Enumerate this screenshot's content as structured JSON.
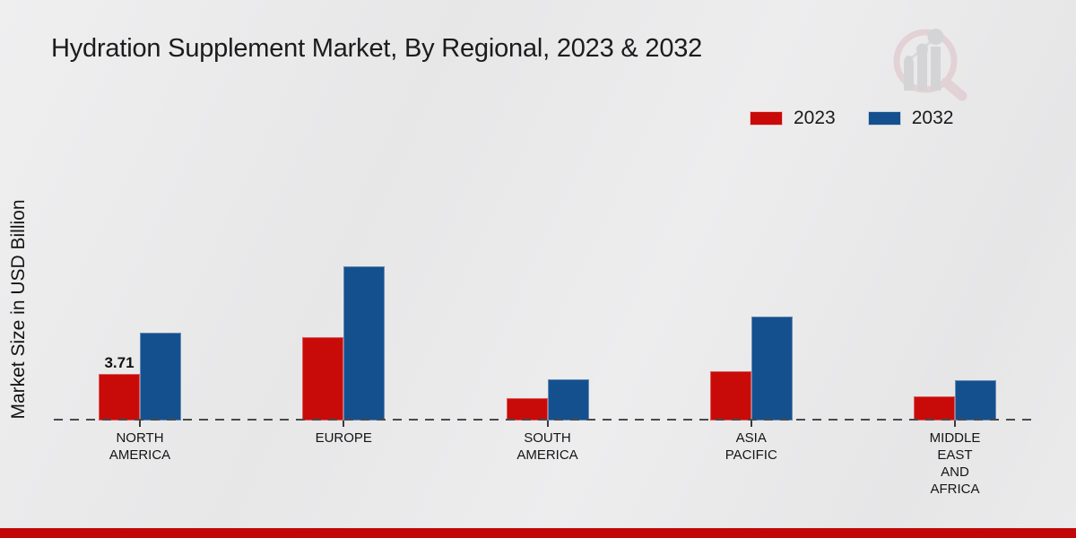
{
  "header": {
    "title": "Hydration Supplement Market, By Regional, 2023 & 2032"
  },
  "watermark": {
    "label": "magnifier-bar-chart-logo"
  },
  "footer": {
    "accent_color": "#c10707"
  },
  "chart_data": {
    "type": "bar",
    "title": "Hydration Supplement Market, By Regional, 2023 & 2032",
    "ylabel": "Market Size in USD Billion",
    "xlabel": "",
    "units": "USD Billion",
    "categories": [
      "North America",
      "Europe",
      "South America",
      "Asia Pacific",
      "Middle East and Africa"
    ],
    "tick_labels": [
      "NORTH\nAMERICA",
      "EUROPE",
      "SOUTH\nAMERICA",
      "ASIA\nPACIFIC",
      "MIDDLE\nEAST\nAND\nAFRICA"
    ],
    "series": [
      {
        "name": "2023",
        "color": "#c80b08",
        "values": [
          3.71,
          6.6,
          1.8,
          3.9,
          1.9
        ],
        "data_labels": [
          "3.71",
          "",
          "",
          "",
          ""
        ]
      },
      {
        "name": "2032",
        "color": "#15508e",
        "values": [
          7.0,
          12.3,
          3.3,
          8.3,
          3.2
        ],
        "data_labels": [
          "",
          "",
          "",
          "",
          ""
        ]
      }
    ],
    "ylim": [
      0,
      13.5
    ],
    "grid": false,
    "legend_position": "top-right",
    "baseline_style": "dashed"
  }
}
